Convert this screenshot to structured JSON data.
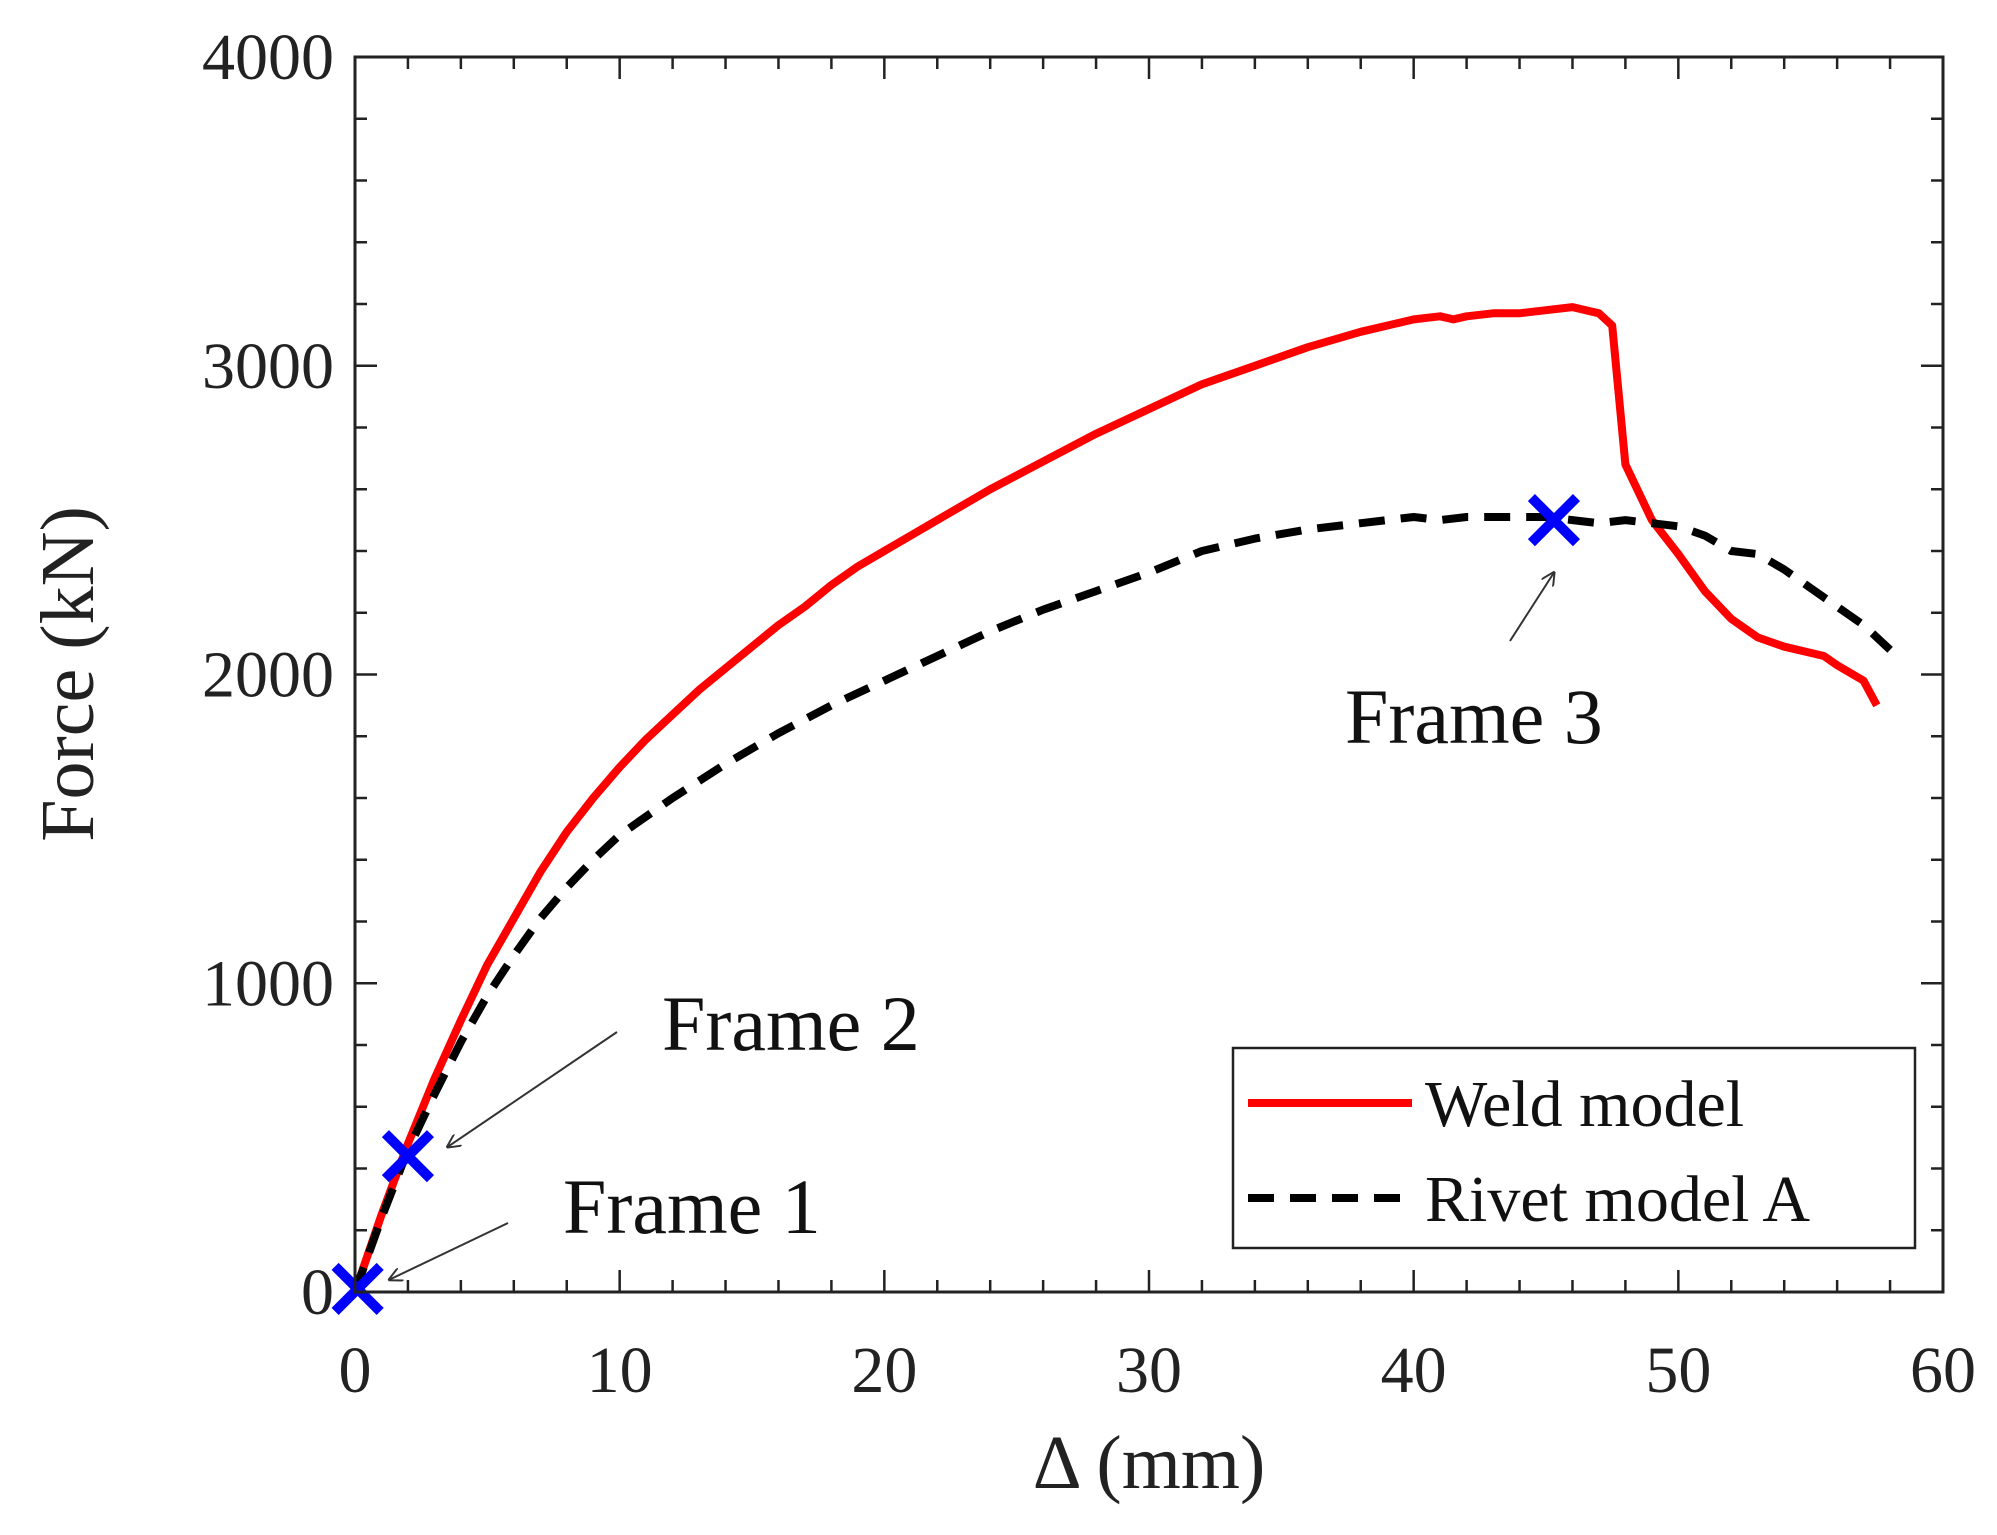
{
  "chart_data": {
    "type": "line",
    "title": "",
    "xlabel": "Δ (mm)",
    "ylabel": "Force (kN)",
    "xlim": [
      0,
      60
    ],
    "ylim": [
      0,
      4000
    ],
    "xticks": [
      0,
      10,
      20,
      30,
      40,
      50,
      60
    ],
    "yticks": [
      0,
      1000,
      2000,
      3000,
      4000
    ],
    "xtick_labels": [
      "0",
      "10",
      "20",
      "30",
      "40",
      "50",
      "60"
    ],
    "ytick_labels": [
      "0",
      "1000",
      "2000",
      "3000",
      "4000"
    ],
    "grid": false,
    "legend_position": "bottom-right",
    "series": [
      {
        "name": "Weld model",
        "color": "#ff0000",
        "style": "solid",
        "x": [
          0,
          1,
          2,
          3,
          4,
          5,
          6,
          7,
          8,
          9,
          10,
          11,
          12,
          13,
          14,
          15,
          16,
          17,
          18,
          19,
          20,
          22,
          24,
          26,
          28,
          30,
          32,
          34,
          36,
          38,
          40,
          41,
          41.5,
          42,
          43,
          44,
          45,
          46,
          47,
          47.5,
          48,
          49,
          50,
          51,
          52,
          53,
          54,
          55,
          55.5,
          56,
          57,
          57.5
        ],
        "y": [
          0,
          250,
          480,
          690,
          880,
          1060,
          1210,
          1360,
          1490,
          1600,
          1700,
          1790,
          1870,
          1950,
          2020,
          2090,
          2160,
          2220,
          2290,
          2350,
          2400,
          2500,
          2600,
          2690,
          2780,
          2860,
          2940,
          3000,
          3060,
          3110,
          3150,
          3160,
          3150,
          3160,
          3170,
          3170,
          3180,
          3190,
          3170,
          3130,
          2680,
          2500,
          2390,
          2270,
          2180,
          2120,
          2090,
          2070,
          2060,
          2030,
          1980,
          1900
        ]
      },
      {
        "name": "Rivet model A",
        "color": "#000000",
        "style": "dashed",
        "x": [
          0,
          1,
          2,
          3,
          4,
          5,
          6,
          7,
          8,
          9,
          10,
          12,
          14,
          16,
          18,
          20,
          22,
          24,
          26,
          28,
          30,
          32,
          34,
          36,
          38,
          40,
          41,
          42,
          43,
          44,
          45,
          46,
          47,
          48,
          49,
          50,
          51,
          52,
          53,
          54,
          55,
          56,
          57,
          58
        ],
        "y": [
          0,
          240,
          460,
          640,
          810,
          960,
          1090,
          1210,
          1310,
          1400,
          1480,
          1600,
          1710,
          1810,
          1900,
          1980,
          2060,
          2140,
          2210,
          2270,
          2330,
          2400,
          2440,
          2470,
          2490,
          2510,
          2500,
          2510,
          2510,
          2510,
          2510,
          2500,
          2490,
          2500,
          2490,
          2480,
          2450,
          2400,
          2390,
          2340,
          2280,
          2220,
          2160,
          2080
        ]
      }
    ],
    "markers": [
      {
        "name": "Frame 1",
        "x": 0.1,
        "y": 10,
        "color": "#0000ff",
        "symbol": "x"
      },
      {
        "name": "Frame 2",
        "x": 2,
        "y": 440,
        "color": "#0000ff",
        "symbol": "x"
      },
      {
        "name": "Frame 3",
        "x": 45.3,
        "y": 2500,
        "color": "#0000ff",
        "symbol": "x"
      }
    ],
    "annotations": [
      {
        "text": "Frame 1",
        "arrow_to_x": 1.3,
        "arrow_to_y": 40
      },
      {
        "text": "Frame 2",
        "arrow_to_x": 3.5,
        "arrow_to_y": 470
      },
      {
        "text": "Frame 3",
        "arrow_to_x": 45.3,
        "arrow_to_y": 2330
      }
    ]
  }
}
